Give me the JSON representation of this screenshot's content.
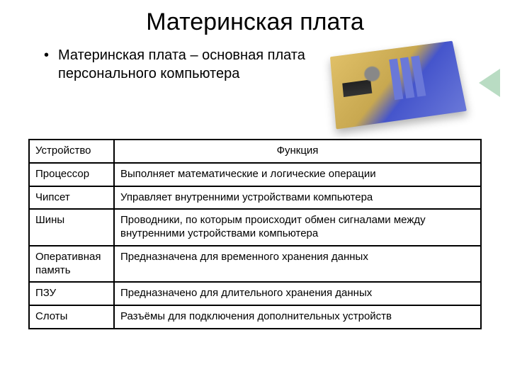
{
  "title": "Материнская плата",
  "bullet": "Материнская плата – основная плата персонального компьютера",
  "table": {
    "header": {
      "device": "Устройство",
      "func": "Функция"
    },
    "rows": [
      {
        "device": "Процессор",
        "func": "Выполняет математические и логические операции"
      },
      {
        "device": "Чипсет",
        "func": "Управляет внутренними устройствами компьютера"
      },
      {
        "device": "Шины",
        "func": "Проводники, по которым происходит обмен сигналами между внутренними устройствами компьютера"
      },
      {
        "device": "Оперативная память",
        "func": "Предназначена для временного хранения данных"
      },
      {
        "device": "ПЗУ",
        "func": "Предназначено для длительного хранения данных"
      },
      {
        "device": "Слоты",
        "func": "Разъёмы для подключения дополнительных устройств"
      }
    ]
  },
  "colors": {
    "accent_green": "#b9dcc3",
    "border": "#000000",
    "text": "#000000"
  }
}
